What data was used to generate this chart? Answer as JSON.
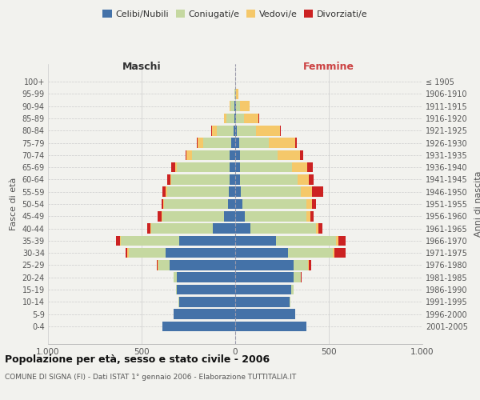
{
  "age_groups": [
    "0-4",
    "5-9",
    "10-14",
    "15-19",
    "20-24",
    "25-29",
    "30-34",
    "35-39",
    "40-44",
    "45-49",
    "50-54",
    "55-59",
    "60-64",
    "65-69",
    "70-74",
    "75-79",
    "80-84",
    "85-89",
    "90-94",
    "95-99",
    "100+"
  ],
  "birth_years": [
    "2001-2005",
    "1996-2000",
    "1991-1995",
    "1986-1990",
    "1981-1985",
    "1976-1980",
    "1971-1975",
    "1966-1970",
    "1961-1965",
    "1956-1960",
    "1951-1955",
    "1946-1950",
    "1941-1945",
    "1936-1940",
    "1931-1935",
    "1926-1930",
    "1921-1925",
    "1916-1920",
    "1911-1915",
    "1906-1910",
    "≤ 1905"
  ],
  "males": {
    "celibi": [
      390,
      330,
      300,
      310,
      310,
      350,
      370,
      300,
      120,
      60,
      40,
      35,
      30,
      30,
      30,
      20,
      10,
      5,
      5,
      0,
      0
    ],
    "coniugati": [
      0,
      0,
      5,
      5,
      20,
      60,
      200,
      310,
      330,
      330,
      340,
      330,
      310,
      280,
      200,
      150,
      90,
      40,
      20,
      5,
      0
    ],
    "vedovi": [
      0,
      0,
      0,
      0,
      0,
      5,
      5,
      5,
      5,
      5,
      5,
      5,
      5,
      10,
      30,
      30,
      25,
      15,
      5,
      0,
      0
    ],
    "divorziati": [
      0,
      0,
      0,
      0,
      0,
      5,
      10,
      20,
      15,
      20,
      10,
      20,
      20,
      20,
      5,
      5,
      5,
      0,
      0,
      0,
      0
    ]
  },
  "females": {
    "nubili": [
      380,
      320,
      290,
      300,
      310,
      310,
      280,
      220,
      80,
      50,
      40,
      30,
      25,
      25,
      25,
      20,
      10,
      5,
      5,
      0,
      0
    ],
    "coniugate": [
      0,
      0,
      5,
      10,
      40,
      80,
      240,
      320,
      350,
      330,
      340,
      320,
      310,
      280,
      200,
      160,
      100,
      40,
      20,
      5,
      0
    ],
    "vedove": [
      0,
      0,
      0,
      0,
      0,
      5,
      10,
      10,
      15,
      20,
      30,
      60,
      60,
      80,
      120,
      140,
      130,
      80,
      50,
      10,
      0
    ],
    "divorziate": [
      0,
      0,
      0,
      0,
      5,
      10,
      60,
      40,
      20,
      20,
      20,
      60,
      25,
      30,
      20,
      10,
      5,
      5,
      0,
      0,
      0
    ]
  },
  "colors": {
    "celibi": "#4472a8",
    "coniugati": "#c5d8a0",
    "vedovi": "#f5c86a",
    "divorziati": "#cc2222"
  },
  "legend_labels": [
    "Celibi/Nubili",
    "Coniugati/e",
    "Vedovi/e",
    "Divorziati/e"
  ],
  "title": "Popolazione per età, sesso e stato civile - 2006",
  "subtitle": "COMUNE DI SIGNA (FI) - Dati ISTAT 1° gennaio 2006 - Elaborazione TUTTITALIA.IT",
  "xlabel_left": "Maschi",
  "xlabel_right": "Femmine",
  "ylabel_left": "Fasce di età",
  "ylabel_right": "Anni di nascita",
  "xlim": 1000,
  "background_color": "#f2f2ee"
}
